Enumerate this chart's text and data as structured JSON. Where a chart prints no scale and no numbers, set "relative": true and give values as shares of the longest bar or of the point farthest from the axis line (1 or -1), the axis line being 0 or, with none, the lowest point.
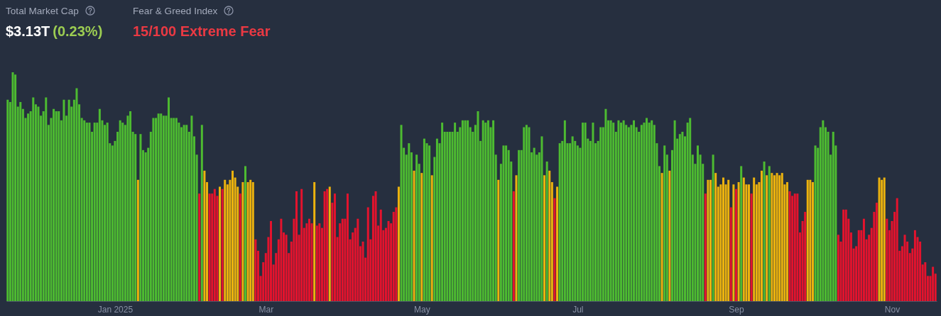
{
  "chart_data": {
    "type": "bar",
    "title": "Fear & Greed Index",
    "subtitle": "15/100 Extreme Fear",
    "annotations": [
      "Total Market Cap",
      "$3.13T",
      "(0.23%)"
    ],
    "relative": true,
    "xlim": [
      "2024-11-19T12:00",
      "2025-11-18T12:00"
    ],
    "xticks": [
      {
        "value": "2025-01-01",
        "label": "Jan 2025"
      },
      {
        "value": "2025-03-01",
        "label": "Mar"
      },
      {
        "value": "2025-05-01",
        "label": "May"
      },
      {
        "value": "2025-07-01",
        "label": "Jul"
      },
      {
        "value": "2025-09-01",
        "label": "Sep"
      },
      {
        "value": "2025-11-01",
        "label": "Nov"
      }
    ],
    "x": [
      "2024-11-20",
      "2024-11-21",
      "2024-11-22",
      "2024-11-23",
      "2024-11-24",
      "2024-11-25",
      "2024-11-26",
      "2024-11-27",
      "2024-11-28",
      "2024-11-29",
      "2024-11-30",
      "2024-12-01",
      "2024-12-02",
      "2024-12-03",
      "2024-12-04",
      "2024-12-05",
      "2024-12-06",
      "2024-12-07",
      "2024-12-08",
      "2024-12-09",
      "2024-12-10",
      "2024-12-11",
      "2024-12-12",
      "2024-12-13",
      "2024-12-14",
      "2024-12-15",
      "2024-12-16",
      "2024-12-17",
      "2024-12-18",
      "2024-12-19",
      "2024-12-20",
      "2024-12-21",
      "2024-12-22",
      "2024-12-23",
      "2024-12-24",
      "2024-12-25",
      "2024-12-26",
      "2024-12-27",
      "2024-12-28",
      "2024-12-29",
      "2024-12-30",
      "2024-12-31",
      "2025-01-01",
      "2025-01-02",
      "2025-01-03",
      "2025-01-04",
      "2025-01-05",
      "2025-01-06",
      "2025-01-07",
      "2025-01-08",
      "2025-01-09",
      "2025-01-10",
      "2025-01-11",
      "2025-01-12",
      "2025-01-13",
      "2025-01-14",
      "2025-01-15",
      "2025-01-16",
      "2025-01-17",
      "2025-01-18",
      "2025-01-19",
      "2025-01-20",
      "2025-01-21",
      "2025-01-22",
      "2025-01-23",
      "2025-01-24",
      "2025-01-25",
      "2025-01-26",
      "2025-01-27",
      "2025-01-28",
      "2025-01-29",
      "2025-01-30",
      "2025-01-31",
      "2025-02-01",
      "2025-02-02",
      "2025-02-03",
      "2025-02-04",
      "2025-02-05",
      "2025-02-06",
      "2025-02-07",
      "2025-02-08",
      "2025-02-09",
      "2025-02-10",
      "2025-02-11",
      "2025-02-12",
      "2025-02-13",
      "2025-02-14",
      "2025-02-15",
      "2025-02-16",
      "2025-02-17",
      "2025-02-18",
      "2025-02-19",
      "2025-02-20",
      "2025-02-21",
      "2025-02-22",
      "2025-02-23",
      "2025-02-24",
      "2025-02-25",
      "2025-02-26",
      "2025-02-27",
      "2025-02-28",
      "2025-03-01",
      "2025-03-02",
      "2025-03-03",
      "2025-03-04",
      "2025-03-05",
      "2025-03-06",
      "2025-03-07",
      "2025-03-08",
      "2025-03-09",
      "2025-03-10",
      "2025-03-11",
      "2025-03-12",
      "2025-03-13",
      "2025-03-14",
      "2025-03-15",
      "2025-03-16",
      "2025-03-17",
      "2025-03-18",
      "2025-03-19",
      "2025-03-20",
      "2025-03-21",
      "2025-03-22",
      "2025-03-23",
      "2025-03-24",
      "2025-03-25",
      "2025-03-26",
      "2025-03-27",
      "2025-03-28",
      "2025-03-29",
      "2025-03-30",
      "2025-03-31",
      "2025-04-01",
      "2025-04-02",
      "2025-04-03",
      "2025-04-04",
      "2025-04-05",
      "2025-04-06",
      "2025-04-07",
      "2025-04-08",
      "2025-04-09",
      "2025-04-10",
      "2025-04-11",
      "2025-04-12",
      "2025-04-13",
      "2025-04-14",
      "2025-04-15",
      "2025-04-16",
      "2025-04-17",
      "2025-04-18",
      "2025-04-19",
      "2025-04-20",
      "2025-04-21",
      "2025-04-22",
      "2025-04-23",
      "2025-04-24",
      "2025-04-25",
      "2025-04-26",
      "2025-04-27",
      "2025-04-28",
      "2025-04-29",
      "2025-04-30",
      "2025-05-01",
      "2025-05-02",
      "2025-05-03",
      "2025-05-04",
      "2025-05-05",
      "2025-05-06",
      "2025-05-07",
      "2025-05-08",
      "2025-05-09",
      "2025-05-10",
      "2025-05-11",
      "2025-05-12",
      "2025-05-13",
      "2025-05-14",
      "2025-05-15",
      "2025-05-16",
      "2025-05-17",
      "2025-05-18",
      "2025-05-19",
      "2025-05-20",
      "2025-05-21",
      "2025-05-22",
      "2025-05-23",
      "2025-05-24",
      "2025-05-25",
      "2025-05-26",
      "2025-05-27",
      "2025-05-28",
      "2025-05-29",
      "2025-05-30",
      "2025-05-31",
      "2025-06-01",
      "2025-06-02",
      "2025-06-03",
      "2025-06-04",
      "2025-06-05",
      "2025-06-06",
      "2025-06-07",
      "2025-06-08",
      "2025-06-09",
      "2025-06-10",
      "2025-06-11",
      "2025-06-12",
      "2025-06-13",
      "2025-06-14",
      "2025-06-15",
      "2025-06-16",
      "2025-06-17",
      "2025-06-18",
      "2025-06-19",
      "2025-06-20",
      "2025-06-21",
      "2025-06-22",
      "2025-06-23",
      "2025-06-24",
      "2025-06-25",
      "2025-06-26",
      "2025-06-27",
      "2025-06-28",
      "2025-06-29",
      "2025-06-30",
      "2025-07-01",
      "2025-07-02",
      "2025-07-03",
      "2025-07-04",
      "2025-07-05",
      "2025-07-06",
      "2025-07-07",
      "2025-07-08",
      "2025-07-09",
      "2025-07-10",
      "2025-07-11",
      "2025-07-12",
      "2025-07-13",
      "2025-07-14",
      "2025-07-15",
      "2025-07-16",
      "2025-07-17",
      "2025-07-18",
      "2025-07-19",
      "2025-07-20",
      "2025-07-21",
      "2025-07-22",
      "2025-07-23",
      "2025-07-24",
      "2025-07-25",
      "2025-07-26",
      "2025-07-27",
      "2025-07-28",
      "2025-07-29",
      "2025-07-30",
      "2025-07-31",
      "2025-08-01",
      "2025-08-02",
      "2025-08-03",
      "2025-08-04",
      "2025-08-05",
      "2025-08-06",
      "2025-08-07",
      "2025-08-08",
      "2025-08-09",
      "2025-08-10",
      "2025-08-11",
      "2025-08-12",
      "2025-08-13",
      "2025-08-14",
      "2025-08-15",
      "2025-08-16",
      "2025-08-17",
      "2025-08-18",
      "2025-08-19",
      "2025-08-20",
      "2025-08-21",
      "2025-08-22",
      "2025-08-23",
      "2025-08-24",
      "2025-08-25",
      "2025-08-26",
      "2025-08-27",
      "2025-08-28",
      "2025-08-29",
      "2025-08-30",
      "2025-08-31",
      "2025-09-01",
      "2025-09-02",
      "2025-09-03",
      "2025-09-04",
      "2025-09-05",
      "2025-09-06",
      "2025-09-07",
      "2025-09-08",
      "2025-09-09",
      "2025-09-10",
      "2025-09-11",
      "2025-09-12",
      "2025-09-13",
      "2025-09-14",
      "2025-09-15",
      "2025-09-16",
      "2025-09-17",
      "2025-09-18",
      "2025-09-19",
      "2025-09-20",
      "2025-09-21",
      "2025-09-22",
      "2025-09-23",
      "2025-09-24",
      "2025-09-25",
      "2025-09-26",
      "2025-09-27",
      "2025-09-28",
      "2025-09-29",
      "2025-09-30",
      "2025-10-01",
      "2025-10-02",
      "2025-10-03",
      "2025-10-04",
      "2025-10-05",
      "2025-10-06",
      "2025-10-07",
      "2025-10-08",
      "2025-10-09",
      "2025-10-10",
      "2025-10-11",
      "2025-10-12",
      "2025-10-13",
      "2025-10-14",
      "2025-10-15",
      "2025-10-16",
      "2025-10-17",
      "2025-10-18",
      "2025-10-19",
      "2025-10-20",
      "2025-10-21",
      "2025-10-22",
      "2025-10-23",
      "2025-10-24",
      "2025-10-25",
      "2025-10-26",
      "2025-10-27",
      "2025-10-28",
      "2025-10-29",
      "2025-10-30",
      "2025-10-31",
      "2025-11-01",
      "2025-11-02",
      "2025-11-03",
      "2025-11-04",
      "2025-11-05",
      "2025-11-06",
      "2025-11-07",
      "2025-11-08",
      "2025-11-09",
      "2025-11-10",
      "2025-11-11",
      "2025-11-12",
      "2025-11-13",
      "2025-11-14",
      "2025-11-15",
      "2025-11-16",
      "2025-11-17",
      "2025-11-18"
    ],
    "values": [
      0.88,
      0.87,
      1,
      0.99,
      0.85,
      0.87,
      0.84,
      0.8,
      0.82,
      0.83,
      0.89,
      0.86,
      0.85,
      0.81,
      0.83,
      0.89,
      0.77,
      0.8,
      0.84,
      0.83,
      0.83,
      0.79,
      0.88,
      0.81,
      0.88,
      0.85,
      0.88,
      0.93,
      0.86,
      0.8,
      0.79,
      0.78,
      0.78,
      0.74,
      0.78,
      0.78,
      0.84,
      0.79,
      0.77,
      0.78,
      0.69,
      0.68,
      0.7,
      0.74,
      0.79,
      0.78,
      0.77,
      0.81,
      0.83,
      0.74,
      0.73,
      0.53,
      0.73,
      0.66,
      0.65,
      0.67,
      0.74,
      0.8,
      0.8,
      0.82,
      0.82,
      0.81,
      0.81,
      0.89,
      0.8,
      0.8,
      0.8,
      0.78,
      0.76,
      0.77,
      0.77,
      0.74,
      0.81,
      0.72,
      0.64,
      0.47,
      0.77,
      0.57,
      0.52,
      0.47,
      0.47,
      0.49,
      0.46,
      0.5,
      0.49,
      0.53,
      0.51,
      0.53,
      0.57,
      0.54,
      0.5,
      0.47,
      0.52,
      0.59,
      0.52,
      0.53,
      0.52,
      0.27,
      0.22,
      0.11,
      0.17,
      0.21,
      0.28,
      0.35,
      0.16,
      0.21,
      0.27,
      0.36,
      0.3,
      0.29,
      0.21,
      0.26,
      0.36,
      0.48,
      0.29,
      0.49,
      0.32,
      0.34,
      0.36,
      0.34,
      0.52,
      0.33,
      0.34,
      0.32,
      0.48,
      0.49,
      0.5,
      0.43,
      0.47,
      0.28,
      0.34,
      0.36,
      0.36,
      0.47,
      0.27,
      0.3,
      0.32,
      0.36,
      0.24,
      0.26,
      0.19,
      0.41,
      0.27,
      0.46,
      0.48,
      0.33,
      0.4,
      0.31,
      0.32,
      0.35,
      0.34,
      0.39,
      0.41,
      0.5,
      0.77,
      0.67,
      0.64,
      0.69,
      0.65,
      0.57,
      0.64,
      0.6,
      0.56,
      0.71,
      0.69,
      0.68,
      0.55,
      0.63,
      0.71,
      0.69,
      0.78,
      0.74,
      0.74,
      0.74,
      0.74,
      0.78,
      0.74,
      0.76,
      0.79,
      0.79,
      0.79,
      0.76,
      0.74,
      0.77,
      0.83,
      0.7,
      0.79,
      0.78,
      0.79,
      0.76,
      0.79,
      0.64,
      0.53,
      0.6,
      0.68,
      0.68,
      0.66,
      0.61,
      0.48,
      0.55,
      0.66,
      0.66,
      0.76,
      0.77,
      0.76,
      0.65,
      0.67,
      0.64,
      0.65,
      0.72,
      0.55,
      0.61,
      0.57,
      0.52,
      0.45,
      0.5,
      0.69,
      0.7,
      0.79,
      0.69,
      0.69,
      0.72,
      0.7,
      0.68,
      0.67,
      0.78,
      0.78,
      0.71,
      0.7,
      0.78,
      0.69,
      0.7,
      0.76,
      0.76,
      0.84,
      0.79,
      0.79,
      0.78,
      0.74,
      0.79,
      0.78,
      0.79,
      0.77,
      0.76,
      0.77,
      0.79,
      0.76,
      0.74,
      0.77,
      0.78,
      0.8,
      0.78,
      0.79,
      0.77,
      0.69,
      0.59,
      0.56,
      0.68,
      0.64,
      0.57,
      0.66,
      0.79,
      0.71,
      0.73,
      0.74,
      0.72,
      0.78,
      0.8,
      0.64,
      0.6,
      0.68,
      0.64,
      0.6,
      0.47,
      0.53,
      0.53,
      0.64,
      0.56,
      0.5,
      0.51,
      0.54,
      0.51,
      0.53,
      0.41,
      0.51,
      0.49,
      0.52,
      0.59,
      0.54,
      0.51,
      0.51,
      0.47,
      0.54,
      0.51,
      0.52,
      0.57,
      0.61,
      0.55,
      0.59,
      0.56,
      0.55,
      0.56,
      0.55,
      0.56,
      0.51,
      0.52,
      0.48,
      0.46,
      0.47,
      0.47,
      0.3,
      0.35,
      0.39,
      0.53,
      0.53,
      0.52,
      0.68,
      0.67,
      0.76,
      0.79,
      0.76,
      0.74,
      0.64,
      0.74,
      0.68,
      0.29,
      0.26,
      0.4,
      0.4,
      0.36,
      0.3,
      0.23,
      0.24,
      0.31,
      0.31,
      0.36,
      0.27,
      0.29,
      0.32,
      0.39,
      0.43,
      0.54,
      0.53,
      0.54,
      0.36,
      0.31,
      0.35,
      0.39,
      0.45,
      0.22,
      0.24,
      0.29,
      0.26,
      0.21,
      0.23,
      0.31,
      0.28,
      0.26,
      0.16,
      0.17,
      0.11,
      0.11,
      0.15,
      0.12
    ],
    "colors": [
      "#4dbb31",
      "#4dbb31",
      "#4dbb31",
      "#4dbb31",
      "#4dbb31",
      "#4dbb31",
      "#4dbb31",
      "#4dbb31",
      "#4dbb31",
      "#4dbb31",
      "#4dbb31",
      "#4dbb31",
      "#4dbb31",
      "#4dbb31",
      "#4dbb31",
      "#4dbb31",
      "#4dbb31",
      "#4dbb31",
      "#4dbb31",
      "#4dbb31",
      "#4dbb31",
      "#4dbb31",
      "#4dbb31",
      "#4dbb31",
      "#4dbb31",
      "#4dbb31",
      "#4dbb31",
      "#4dbb31",
      "#4dbb31",
      "#4dbb31",
      "#4dbb31",
      "#4dbb31",
      "#4dbb31",
      "#4dbb31",
      "#4dbb31",
      "#4dbb31",
      "#4dbb31",
      "#4dbb31",
      "#4dbb31",
      "#4dbb31",
      "#4dbb31",
      "#4dbb31",
      "#4dbb31",
      "#4dbb31",
      "#4dbb31",
      "#4dbb31",
      "#4dbb31",
      "#4dbb31",
      "#4dbb31",
      "#4dbb31",
      "#4dbb31",
      "#ecb30e",
      "#4dbb31",
      "#4dbb31",
      "#4dbb31",
      "#4dbb31",
      "#4dbb31",
      "#4dbb31",
      "#4dbb31",
      "#4dbb31",
      "#4dbb31",
      "#4dbb31",
      "#4dbb31",
      "#4dbb31",
      "#4dbb31",
      "#4dbb31",
      "#4dbb31",
      "#4dbb31",
      "#4dbb31",
      "#4dbb31",
      "#4dbb31",
      "#4dbb31",
      "#4dbb31",
      "#4dbb31",
      "#4dbb31",
      "#e4132d",
      "#4dbb31",
      "#ecb30e",
      "#ecb30e",
      "#e4132d",
      "#e4132d",
      "#e4132d",
      "#e4132d",
      "#ecb30e",
      "#e4132d",
      "#ecb30e",
      "#ecb30e",
      "#ecb30e",
      "#ecb30e",
      "#ecb30e",
      "#ecb30e",
      "#e4132d",
      "#ecb30e",
      "#4dbb31",
      "#ecb30e",
      "#ecb30e",
      "#ecb30e",
      "#e4132d",
      "#e4132d",
      "#e4132d",
      "#e4132d",
      "#e4132d",
      "#e4132d",
      "#e4132d",
      "#e4132d",
      "#e4132d",
      "#e4132d",
      "#e4132d",
      "#e4132d",
      "#e4132d",
      "#e4132d",
      "#e4132d",
      "#e4132d",
      "#e4132d",
      "#e4132d",
      "#e4132d",
      "#e4132d",
      "#e4132d",
      "#e4132d",
      "#e4132d",
      "#ecb30e",
      "#e4132d",
      "#e4132d",
      "#e4132d",
      "#e4132d",
      "#e4132d",
      "#ecb30e",
      "#e4132d",
      "#e4132d",
      "#e4132d",
      "#e4132d",
      "#e4132d",
      "#e4132d",
      "#e4132d",
      "#e4132d",
      "#e4132d",
      "#e4132d",
      "#e4132d",
      "#e4132d",
      "#e4132d",
      "#e4132d",
      "#e4132d",
      "#e4132d",
      "#e4132d",
      "#e4132d",
      "#e4132d",
      "#e4132d",
      "#e4132d",
      "#e4132d",
      "#e4132d",
      "#e4132d",
      "#e4132d",
      "#e4132d",
      "#ecb30e",
      "#4dbb31",
      "#4dbb31",
      "#4dbb31",
      "#4dbb31",
      "#4dbb31",
      "#ecb30e",
      "#4dbb31",
      "#4dbb31",
      "#ecb30e",
      "#4dbb31",
      "#4dbb31",
      "#4dbb31",
      "#ecb30e",
      "#4dbb31",
      "#4dbb31",
      "#4dbb31",
      "#4dbb31",
      "#4dbb31",
      "#4dbb31",
      "#4dbb31",
      "#4dbb31",
      "#4dbb31",
      "#4dbb31",
      "#4dbb31",
      "#4dbb31",
      "#4dbb31",
      "#4dbb31",
      "#4dbb31",
      "#4dbb31",
      "#4dbb31",
      "#4dbb31",
      "#4dbb31",
      "#4dbb31",
      "#4dbb31",
      "#4dbb31",
      "#4dbb31",
      "#4dbb31",
      "#4dbb31",
      "#ecb30e",
      "#4dbb31",
      "#4dbb31",
      "#4dbb31",
      "#4dbb31",
      "#4dbb31",
      "#e4132d",
      "#ecb30e",
      "#4dbb31",
      "#4dbb31",
      "#4dbb31",
      "#4dbb31",
      "#4dbb31",
      "#4dbb31",
      "#4dbb31",
      "#4dbb31",
      "#4dbb31",
      "#4dbb31",
      "#ecb30e",
      "#4dbb31",
      "#ecb30e",
      "#ecb30e",
      "#e4132d",
      "#ecb30e",
      "#4dbb31",
      "#4dbb31",
      "#4dbb31",
      "#4dbb31",
      "#4dbb31",
      "#4dbb31",
      "#4dbb31",
      "#4dbb31",
      "#4dbb31",
      "#4dbb31",
      "#4dbb31",
      "#4dbb31",
      "#4dbb31",
      "#4dbb31",
      "#4dbb31",
      "#4dbb31",
      "#4dbb31",
      "#4dbb31",
      "#4dbb31",
      "#4dbb31",
      "#4dbb31",
      "#4dbb31",
      "#4dbb31",
      "#4dbb31",
      "#4dbb31",
      "#4dbb31",
      "#4dbb31",
      "#4dbb31",
      "#4dbb31",
      "#4dbb31",
      "#4dbb31",
      "#4dbb31",
      "#4dbb31",
      "#4dbb31",
      "#4dbb31",
      "#4dbb31",
      "#4dbb31",
      "#4dbb31",
      "#4dbb31",
      "#4dbb31",
      "#ecb30e",
      "#4dbb31",
      "#4dbb31",
      "#ecb30e",
      "#4dbb31",
      "#4dbb31",
      "#4dbb31",
      "#4dbb31",
      "#4dbb31",
      "#4dbb31",
      "#4dbb31",
      "#4dbb31",
      "#4dbb31",
      "#4dbb31",
      "#4dbb31",
      "#4dbb31",
      "#4dbb31",
      "#e4132d",
      "#ecb30e",
      "#ecb30e",
      "#4dbb31",
      "#ecb30e",
      "#ecb30e",
      "#ecb30e",
      "#ecb30e",
      "#ecb30e",
      "#ecb30e",
      "#e4132d",
      "#ecb30e",
      "#e4132d",
      "#ecb30e",
      "#4dbb31",
      "#ecb30e",
      "#ecb30e",
      "#ecb30e",
      "#e4132d",
      "#ecb30e",
      "#ecb30e",
      "#ecb30e",
      "#ecb30e",
      "#4dbb31",
      "#ecb30e",
      "#4dbb31",
      "#ecb30e",
      "#ecb30e",
      "#ecb30e",
      "#ecb30e",
      "#ecb30e",
      "#ecb30e",
      "#ecb30e",
      "#e4132d",
      "#e4132d",
      "#e4132d",
      "#e4132d",
      "#e4132d",
      "#e4132d",
      "#e4132d",
      "#ecb30e",
      "#ecb30e",
      "#ecb30e",
      "#4dbb31",
      "#4dbb31",
      "#4dbb31",
      "#4dbb31",
      "#4dbb31",
      "#4dbb31",
      "#4dbb31",
      "#4dbb31",
      "#4dbb31",
      "#e4132d",
      "#e4132d",
      "#e4132d",
      "#e4132d",
      "#e4132d",
      "#e4132d",
      "#e4132d",
      "#e4132d",
      "#e4132d",
      "#e4132d",
      "#e4132d",
      "#e4132d",
      "#e4132d",
      "#e4132d",
      "#e4132d",
      "#e4132d",
      "#ecb30e",
      "#ecb30e",
      "#ecb30e",
      "#e4132d",
      "#e4132d",
      "#e4132d",
      "#e4132d",
      "#e4132d",
      "#e4132d",
      "#e4132d",
      "#e4132d",
      "#e4132d",
      "#e4132d",
      "#e4132d",
      "#e4132d",
      "#e4132d",
      "#e4132d",
      "#e4132d",
      "#e4132d",
      "#e4132d",
      "#e4132d",
      "#e4132d",
      "#e4132d"
    ]
  }
}
